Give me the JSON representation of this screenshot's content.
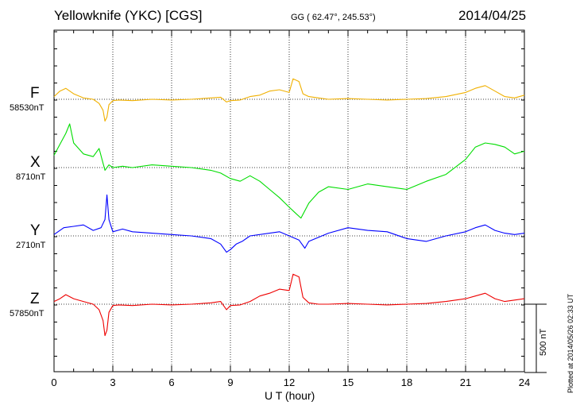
{
  "header": {
    "title": "Yellowknife (YKC)  [CGS]",
    "coords": "GG ( 62.47°, 245.53°)",
    "date": "2014/04/25"
  },
  "footer": {
    "xlabel": "U T (hour)",
    "plotted": "Plotted at 2014/05/26 02:33 UT",
    "scale_label": "500 nT"
  },
  "chart_data": {
    "type": "line",
    "title": "Yellowknife (YKC)  [CGS]",
    "xlabel": "U T (hour)",
    "ylabel": "",
    "xlim": [
      0,
      24
    ],
    "x_ticks": [
      0,
      3,
      6,
      9,
      12,
      15,
      18,
      21,
      24
    ],
    "x_tick_labels": [
      "0",
      "3",
      "6",
      "9",
      "12",
      "15",
      "18",
      "21",
      "24"
    ],
    "scale_bar_nT": 500,
    "grid": true,
    "series": [
      {
        "name": "F",
        "baseline": "58530nT",
        "color": "#f0b000",
        "x": [
          0,
          0.3,
          0.6,
          1,
          1.5,
          2,
          2.3,
          2.5,
          2.6,
          2.7,
          2.8,
          3,
          3.3,
          4,
          5,
          6,
          7,
          8,
          8.5,
          8.8,
          9,
          9.5,
          10,
          10.5,
          11,
          11.5,
          12,
          12.2,
          12.5,
          12.7,
          13,
          13.5,
          14,
          15,
          16,
          17,
          18,
          19,
          20,
          21,
          21.5,
          22,
          22.5,
          23,
          23.5,
          24
        ],
        "y": [
          20,
          60,
          80,
          40,
          10,
          0,
          -30,
          -80,
          -160,
          -130,
          -40,
          -10,
          -5,
          -10,
          0,
          -5,
          0,
          10,
          15,
          -20,
          -10,
          -5,
          20,
          30,
          60,
          70,
          50,
          150,
          130,
          40,
          20,
          10,
          0,
          5,
          0,
          -5,
          0,
          5,
          20,
          50,
          80,
          100,
          60,
          20,
          10,
          30
        ]
      },
      {
        "name": "X",
        "baseline": "8710nT",
        "color": "#00dd00",
        "x": [
          0,
          0.3,
          0.6,
          0.8,
          1,
          1.5,
          2,
          2.3,
          2.6,
          2.8,
          3,
          3.5,
          4,
          5,
          6,
          7,
          8,
          8.5,
          9,
          9.5,
          10,
          10.5,
          11,
          11.5,
          12,
          12.3,
          12.6,
          13,
          13.5,
          14,
          15,
          16,
          17,
          18,
          19,
          20,
          21,
          21.5,
          22,
          22.5,
          23,
          23.5,
          24
        ],
        "y": [
          90,
          170,
          250,
          320,
          180,
          100,
          80,
          140,
          -20,
          20,
          0,
          10,
          0,
          20,
          10,
          0,
          -20,
          -40,
          -80,
          -100,
          -60,
          -100,
          -160,
          -220,
          -290,
          -330,
          -370,
          -260,
          -180,
          -140,
          -160,
          -120,
          -140,
          -160,
          -100,
          -50,
          60,
          150,
          180,
          170,
          150,
          100,
          120
        ]
      },
      {
        "name": "Y",
        "baseline": "2710nT",
        "color": "#0000ff",
        "x": [
          0,
          0.5,
          1,
          1.5,
          2,
          2.4,
          2.6,
          2.7,
          2.8,
          3,
          3.5,
          4,
          5,
          6,
          7,
          8,
          8.5,
          8.8,
          9,
          9.3,
          9.6,
          10,
          11,
          11.5,
          12,
          12.5,
          12.8,
          13,
          14,
          15,
          16,
          17,
          18,
          19,
          20,
          21,
          21.5,
          22,
          22.5,
          23,
          23.5,
          24
        ],
        "y": [
          10,
          60,
          70,
          80,
          40,
          60,
          120,
          300,
          120,
          30,
          50,
          30,
          20,
          10,
          0,
          -20,
          -60,
          -120,
          -100,
          -60,
          -40,
          0,
          20,
          30,
          0,
          -30,
          -90,
          -40,
          20,
          60,
          40,
          30,
          -20,
          -40,
          0,
          30,
          60,
          80,
          40,
          20,
          10,
          20
        ]
      },
      {
        "name": "Z",
        "baseline": "57850nT",
        "color": "#ee0000",
        "x": [
          0,
          0.3,
          0.6,
          1,
          1.5,
          2,
          2.3,
          2.5,
          2.6,
          2.7,
          2.8,
          3,
          3.3,
          4,
          5,
          6,
          7,
          8,
          8.5,
          8.8,
          9,
          9.5,
          10,
          10.5,
          11,
          11.5,
          12,
          12.2,
          12.5,
          12.7,
          13,
          13.5,
          14,
          15,
          16,
          17,
          18,
          19,
          20,
          21,
          21.5,
          22,
          22.5,
          23,
          23.5,
          24
        ],
        "y": [
          20,
          40,
          70,
          40,
          20,
          0,
          -40,
          -120,
          -230,
          -190,
          -60,
          -10,
          -5,
          -10,
          0,
          -5,
          0,
          10,
          20,
          -40,
          -10,
          -5,
          20,
          60,
          80,
          110,
          100,
          220,
          200,
          50,
          10,
          0,
          0,
          5,
          0,
          -5,
          0,
          5,
          20,
          40,
          60,
          80,
          40,
          20,
          30,
          40
        ]
      }
    ]
  }
}
